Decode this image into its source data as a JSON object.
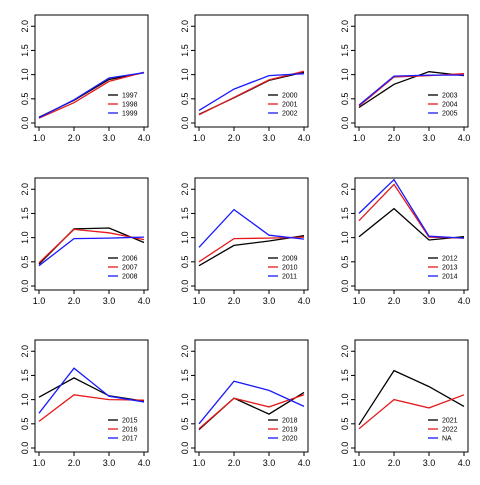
{
  "figure": {
    "series_colors": [
      "#000000",
      "#e41a1c",
      "#1a1aff"
    ],
    "x_tick_labels": [
      "1.0",
      "2.0",
      "3.0",
      "4.0"
    ],
    "y_tick_labels": [
      "0.0",
      "0.5",
      "1.0",
      "1.5",
      "2.0"
    ]
  },
  "chart_data": [
    {
      "type": "line",
      "x": [
        1,
        2,
        3,
        4
      ],
      "xlim": [
        1,
        4
      ],
      "ylim": [
        0,
        2.15
      ],
      "legend_position": "bottom-right",
      "series": [
        {
          "name": "1997",
          "values": [
            0.12,
            0.47,
            0.9,
            1.04
          ]
        },
        {
          "name": "1998",
          "values": [
            0.1,
            0.42,
            0.86,
            1.05
          ]
        },
        {
          "name": "1999",
          "values": [
            0.11,
            0.48,
            0.93,
            1.04
          ]
        }
      ]
    },
    {
      "type": "line",
      "x": [
        1,
        2,
        3,
        4
      ],
      "xlim": [
        1,
        4
      ],
      "ylim": [
        0,
        2.15
      ],
      "legend_position": "bottom-right",
      "series": [
        {
          "name": "2000",
          "values": [
            0.18,
            0.52,
            0.88,
            1.05
          ]
        },
        {
          "name": "2001",
          "values": [
            0.17,
            0.53,
            0.89,
            1.07
          ]
        },
        {
          "name": "2002",
          "values": [
            0.26,
            0.7,
            0.98,
            1.02
          ]
        }
      ]
    },
    {
      "type": "line",
      "x": [
        1,
        2,
        3,
        4
      ],
      "xlim": [
        1,
        4
      ],
      "ylim": [
        0,
        2.15
      ],
      "legend_position": "bottom-right",
      "series": [
        {
          "name": "2003",
          "values": [
            0.32,
            0.8,
            1.06,
            0.98
          ]
        },
        {
          "name": "2004",
          "values": [
            0.35,
            0.95,
            0.98,
            1.02
          ]
        },
        {
          "name": "2005",
          "values": [
            0.37,
            0.97,
            0.99,
            0.99
          ]
        }
      ]
    },
    {
      "type": "line",
      "x": [
        1,
        2,
        3,
        4
      ],
      "xlim": [
        1,
        4
      ],
      "ylim": [
        0,
        2.15
      ],
      "legend_position": "bottom-right",
      "series": [
        {
          "name": "2006",
          "values": [
            0.45,
            1.18,
            1.2,
            0.9
          ]
        },
        {
          "name": "2007",
          "values": [
            0.48,
            1.17,
            1.1,
            0.96
          ]
        },
        {
          "name": "2008",
          "values": [
            0.42,
            0.98,
            0.99,
            1.01
          ]
        }
      ]
    },
    {
      "type": "line",
      "x": [
        1,
        2,
        3,
        4
      ],
      "xlim": [
        1,
        4
      ],
      "ylim": [
        0,
        2.15
      ],
      "legend_position": "bottom-right",
      "series": [
        {
          "name": "2009",
          "values": [
            0.42,
            0.84,
            0.93,
            1.04
          ]
        },
        {
          "name": "2010",
          "values": [
            0.5,
            0.98,
            0.99,
            1.01
          ]
        },
        {
          "name": "2011",
          "values": [
            0.8,
            1.58,
            1.05,
            0.97
          ]
        }
      ]
    },
    {
      "type": "line",
      "x": [
        1,
        2,
        3,
        4
      ],
      "xlim": [
        1,
        4
      ],
      "ylim": [
        0,
        2.15
      ],
      "legend_position": "bottom-right",
      "series": [
        {
          "name": "2012",
          "values": [
            1.02,
            1.6,
            0.95,
            1.02
          ]
        },
        {
          "name": "2013",
          "values": [
            1.35,
            2.1,
            1.01,
            0.99
          ]
        },
        {
          "name": "2014",
          "values": [
            1.5,
            2.2,
            1.03,
            0.99
          ]
        }
      ]
    },
    {
      "type": "line",
      "x": [
        1,
        2,
        3,
        4
      ],
      "xlim": [
        1,
        4
      ],
      "ylim": [
        0,
        2.15
      ],
      "legend_position": "bottom-right",
      "series": [
        {
          "name": "2015",
          "values": [
            1.05,
            1.45,
            1.08,
            0.97
          ]
        },
        {
          "name": "2016",
          "values": [
            0.55,
            1.1,
            1.0,
            0.99
          ]
        },
        {
          "name": "2017",
          "values": [
            0.72,
            1.65,
            1.07,
            0.95
          ]
        }
      ]
    },
    {
      "type": "line",
      "x": [
        1,
        2,
        3,
        4
      ],
      "xlim": [
        1,
        4
      ],
      "ylim": [
        0,
        2.15
      ],
      "legend_position": "bottom-right",
      "series": [
        {
          "name": "2018",
          "values": [
            0.38,
            1.03,
            0.7,
            1.15
          ]
        },
        {
          "name": "2019",
          "values": [
            0.4,
            1.03,
            0.85,
            1.1
          ]
        },
        {
          "name": "2020",
          "values": [
            0.5,
            1.38,
            1.19,
            0.86
          ]
        }
      ]
    },
    {
      "type": "line",
      "x": [
        1,
        2,
        3,
        4
      ],
      "xlim": [
        1,
        4
      ],
      "ylim": [
        0,
        2.15
      ],
      "legend_position": "bottom-right",
      "series": [
        {
          "name": "2021",
          "values": [
            0.48,
            1.6,
            1.27,
            0.86
          ]
        },
        {
          "name": "2022",
          "values": [
            0.4,
            1.0,
            0.83,
            1.1
          ]
        },
        {
          "name": "NA",
          "values": null
        }
      ]
    }
  ]
}
